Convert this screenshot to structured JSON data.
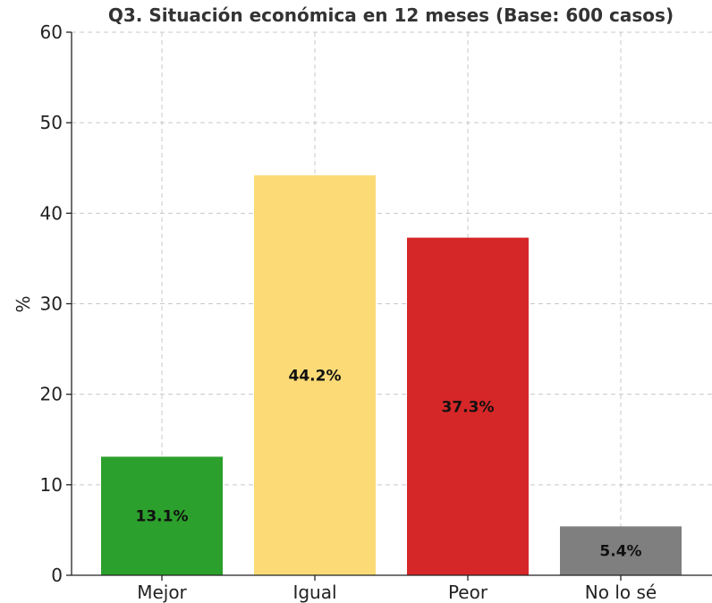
{
  "chart_data": {
    "type": "bar",
    "title": "Q3. Situación económica en 12 meses (Base: 600 casos)",
    "xlabel": "",
    "ylabel": "%",
    "categories": [
      "Mejor",
      "Igual",
      "Peor",
      "No lo sé"
    ],
    "values": [
      13.1,
      44.2,
      37.3,
      5.4
    ],
    "data_labels": [
      "13.1%",
      "44.2%",
      "37.3%",
      "5.4%"
    ],
    "colors": [
      "#2ca02c",
      "#fcdb77",
      "#d62728",
      "#7f7f7f"
    ],
    "ylim": [
      0,
      60
    ],
    "yticks": [
      0,
      10,
      20,
      30,
      40,
      50,
      60
    ],
    "grid": true,
    "legend": "none"
  }
}
